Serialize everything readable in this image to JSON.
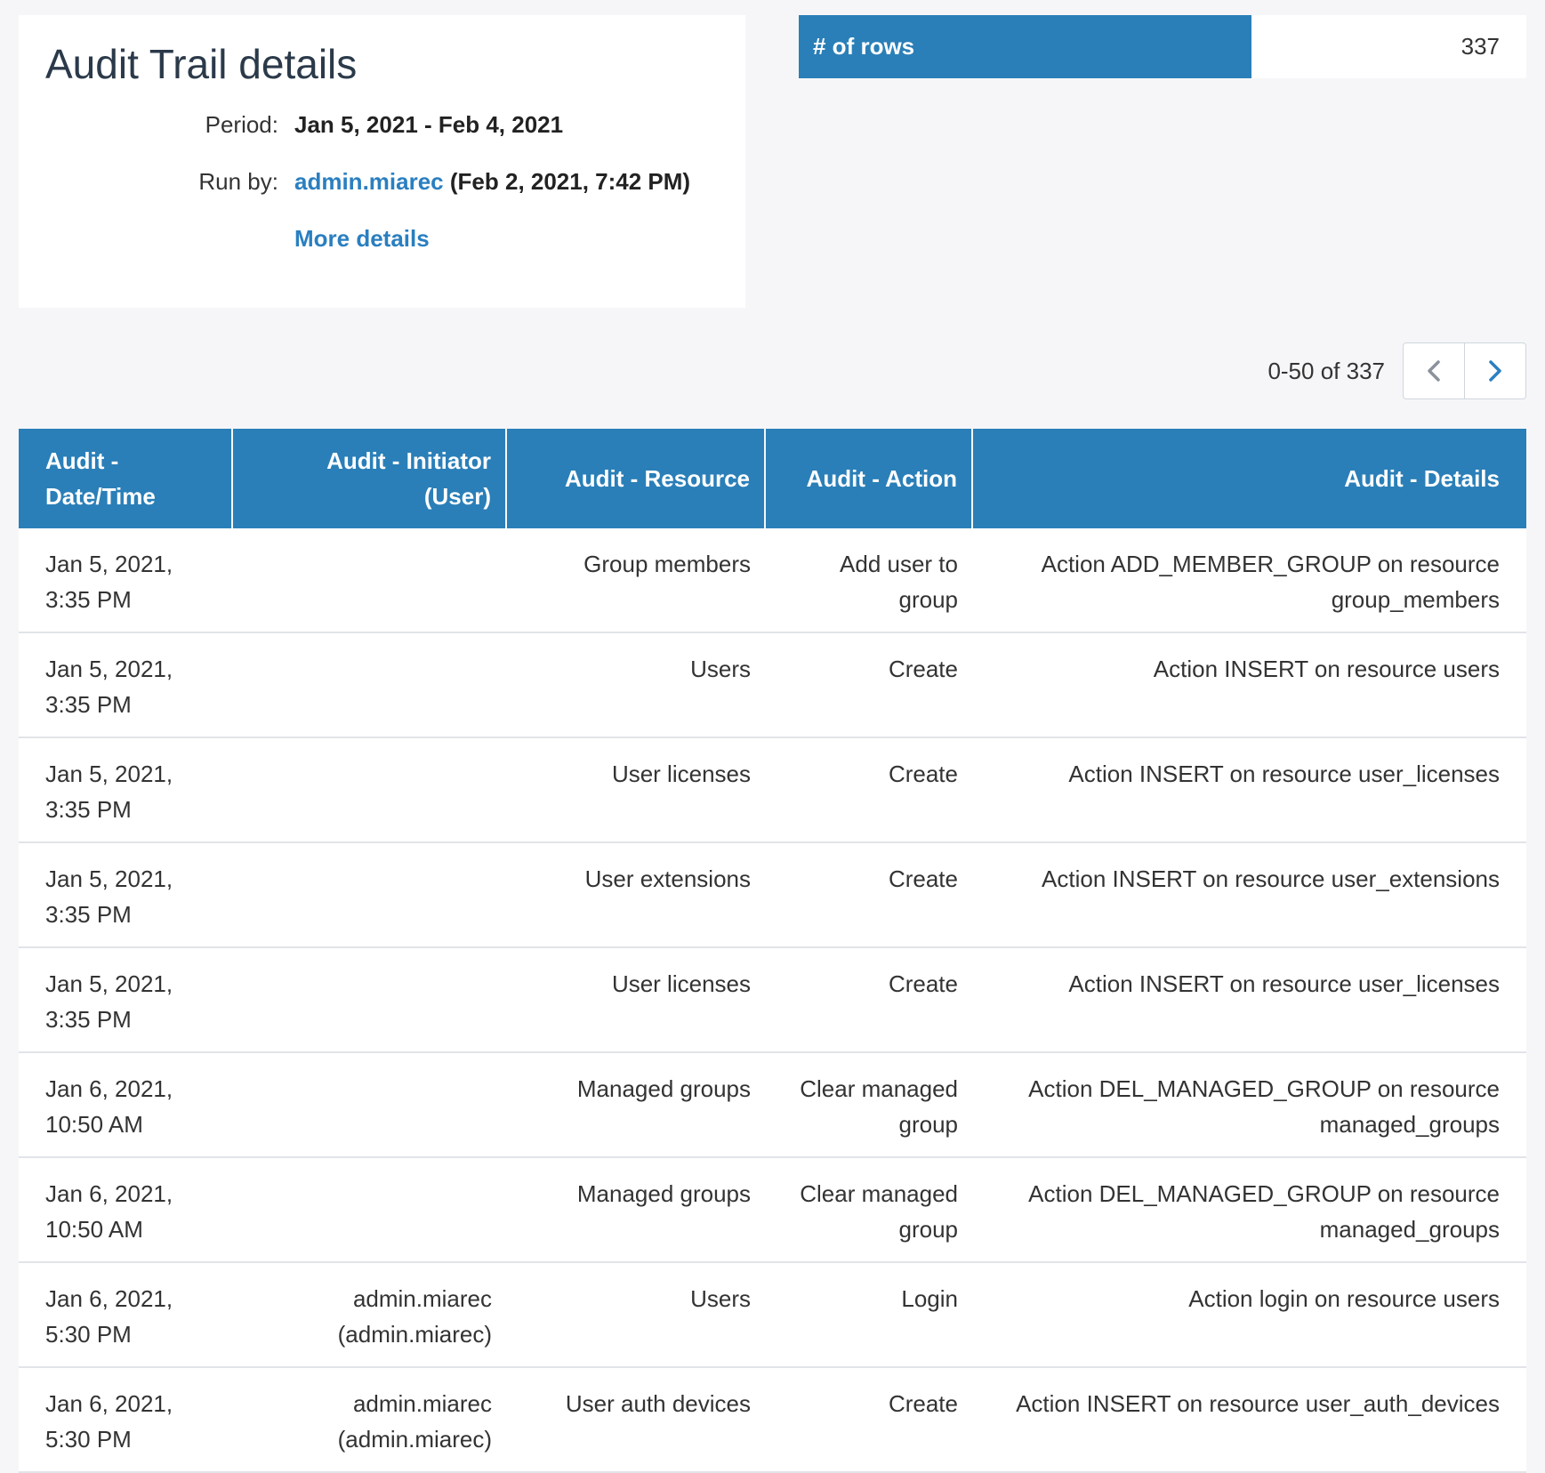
{
  "header": {
    "title": "Audit Trail details",
    "period_label": "Period:",
    "period_value": "Jan 5, 2021 - Feb 4, 2021",
    "run_by_label": "Run by:",
    "run_by_user": "admin.miarec",
    "run_by_time": "(Feb 2, 2021, 7:42 PM)",
    "more_details": "More details"
  },
  "summary": {
    "rows_label": "# of rows",
    "rows_value": "337"
  },
  "pagination": {
    "text": "0-50 of 337",
    "prev_icon": "chevron-left-icon",
    "next_icon": "chevron-right-icon"
  },
  "table": {
    "columns": [
      [
        "Audit -",
        "Date/Time"
      ],
      [
        "Audit - Initiator",
        "(User)"
      ],
      [
        "Audit - Resource"
      ],
      [
        "Audit - Action"
      ],
      [
        "Audit - Details"
      ]
    ],
    "rows": [
      {
        "datetime": [
          "Jan 5, 2021,",
          "3:35 PM"
        ],
        "initiator": [],
        "resource": [
          "Group members"
        ],
        "action": [
          "Add user to",
          "group"
        ],
        "details": [
          "Action ADD_MEMBER_GROUP on resource",
          "group_members"
        ]
      },
      {
        "datetime": [
          "Jan 5, 2021,",
          "3:35 PM"
        ],
        "initiator": [],
        "resource": [
          "Users"
        ],
        "action": [
          "Create"
        ],
        "details": [
          "Action INSERT on resource users"
        ]
      },
      {
        "datetime": [
          "Jan 5, 2021,",
          "3:35 PM"
        ],
        "initiator": [],
        "resource": [
          "User licenses"
        ],
        "action": [
          "Create"
        ],
        "details": [
          "Action INSERT on resource user_licenses"
        ]
      },
      {
        "datetime": [
          "Jan 5, 2021,",
          "3:35 PM"
        ],
        "initiator": [],
        "resource": [
          "User extensions"
        ],
        "action": [
          "Create"
        ],
        "details": [
          "Action INSERT on resource user_extensions"
        ]
      },
      {
        "datetime": [
          "Jan 5, 2021,",
          "3:35 PM"
        ],
        "initiator": [],
        "resource": [
          "User licenses"
        ],
        "action": [
          "Create"
        ],
        "details": [
          "Action INSERT on resource user_licenses"
        ]
      },
      {
        "datetime": [
          "Jan 6, 2021,",
          "10:50 AM"
        ],
        "initiator": [],
        "resource": [
          "Managed groups"
        ],
        "action": [
          "Clear managed",
          "group"
        ],
        "details": [
          "Action DEL_MANAGED_GROUP on resource",
          "managed_groups"
        ]
      },
      {
        "datetime": [
          "Jan 6, 2021,",
          "10:50 AM"
        ],
        "initiator": [],
        "resource": [
          "Managed groups"
        ],
        "action": [
          "Clear managed",
          "group"
        ],
        "details": [
          "Action DEL_MANAGED_GROUP on resource",
          "managed_groups"
        ]
      },
      {
        "datetime": [
          "Jan 6, 2021,",
          "5:30 PM"
        ],
        "initiator": [
          "admin.miarec",
          "(admin.miarec)"
        ],
        "resource": [
          "Users"
        ],
        "action": [
          "Login"
        ],
        "details": [
          "Action login on resource users"
        ]
      },
      {
        "datetime": [
          "Jan 6, 2021,",
          "5:30 PM"
        ],
        "initiator": [
          "admin.miarec",
          "(admin.miarec)"
        ],
        "resource": [
          "User auth devices"
        ],
        "action": [
          "Create"
        ],
        "details": [
          "Action INSERT on resource user_auth_devices"
        ]
      }
    ]
  },
  "colors": {
    "accent": "#2a7fb8",
    "link": "#2a7fc0",
    "background": "#f6f6f8"
  }
}
